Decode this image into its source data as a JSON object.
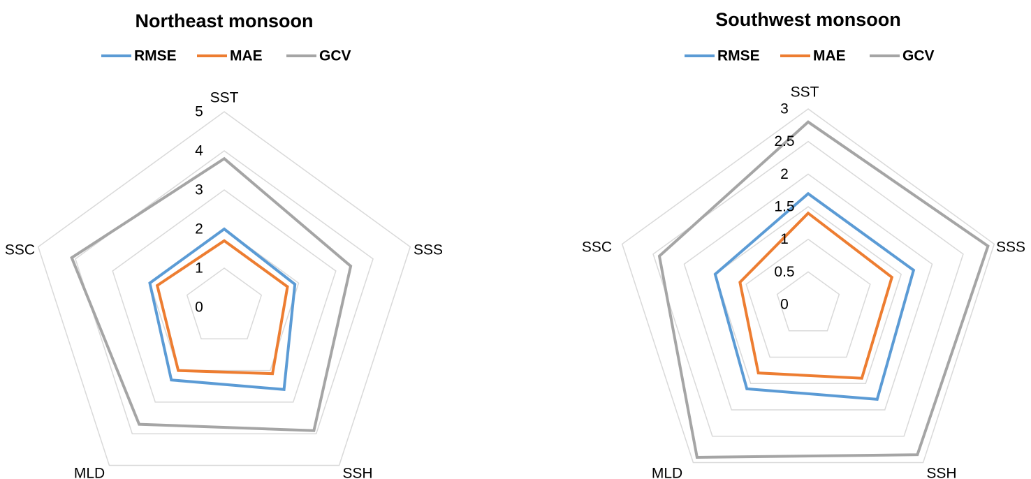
{
  "chart_data": [
    {
      "type": "radar",
      "title": "Northeast monsoon",
      "axes": [
        "SST",
        "SSS",
        "SSH",
        "MLD",
        "SSC"
      ],
      "rlim": [
        0,
        5
      ],
      "ticks": [
        "0",
        "1",
        "2",
        "3",
        "4",
        "5"
      ],
      "tick_values": [
        0,
        1,
        2,
        3,
        4,
        5
      ],
      "legend_position": "top",
      "series": [
        {
          "name": "RMSE",
          "color": "#5b9bd5",
          "values": [
            2.0,
            1.9,
            2.6,
            2.3,
            2.0
          ]
        },
        {
          "name": "MAE",
          "color": "#ed7d31",
          "values": [
            1.7,
            1.7,
            2.1,
            2.0,
            1.8
          ]
        },
        {
          "name": "GCV",
          "color": "#a5a5a5",
          "values": [
            3.8,
            3.4,
            3.9,
            3.7,
            4.1
          ]
        }
      ]
    },
    {
      "type": "radar",
      "title": "Southwest monsoon",
      "axes": [
        "SST",
        "SSS",
        "SSH",
        "MLD",
        "SSC"
      ],
      "rlim": [
        0,
        3
      ],
      "ticks": [
        "0",
        "0.5",
        "1",
        "1.5",
        "2",
        "2.5",
        "3"
      ],
      "tick_values": [
        0,
        0.5,
        1,
        1.5,
        2,
        2.5,
        3
      ],
      "legend_position": "top",
      "series": [
        {
          "name": "RMSE",
          "color": "#5b9bd5",
          "values": [
            1.7,
            1.7,
            1.8,
            1.6,
            1.5
          ]
        },
        {
          "name": "MAE",
          "color": "#ed7d31",
          "values": [
            1.4,
            1.35,
            1.4,
            1.3,
            1.1
          ]
        },
        {
          "name": "GCV",
          "color": "#a5a5a5",
          "values": [
            2.8,
            2.9,
            2.85,
            2.9,
            2.4
          ]
        }
      ]
    }
  ]
}
